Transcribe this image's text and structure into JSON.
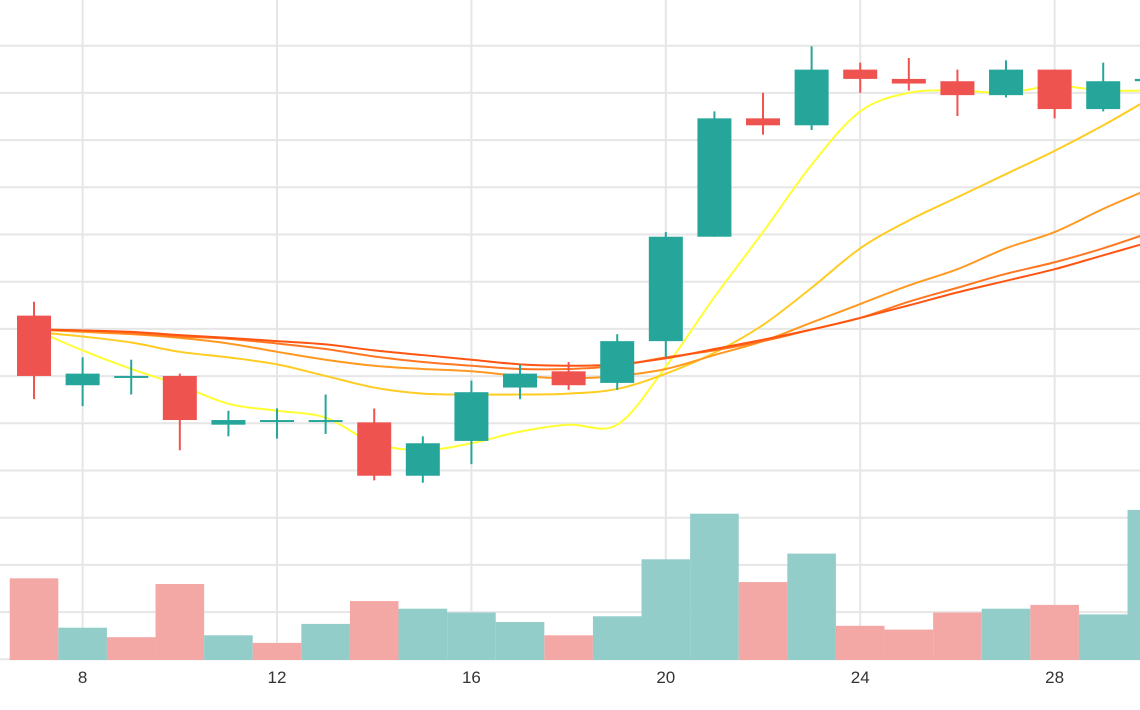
{
  "colors": {
    "up": "#26a69a",
    "down": "#ef5350",
    "up_volume": "#92cdca",
    "down_volume": "#f4a8a6",
    "grid": "#e6e6e6",
    "ma_lines": [
      "#ffff33",
      "#ffcc22",
      "#ff9922",
      "#ff7722",
      "#ff5511"
    ]
  },
  "chart_data": {
    "type": "candlestick",
    "x_ticks": [
      "8",
      "12",
      "16",
      "20",
      "24",
      "28"
    ],
    "x_tick_positions": [
      8,
      12,
      16,
      20,
      24,
      28
    ],
    "xlim": [
      6.3,
      30.6
    ],
    "price_ylim": [
      -1.92,
      12.3
    ],
    "volume_ylim": [
      0,
      100
    ],
    "grid": true,
    "candles": [
      {
        "day": 7,
        "open": 5.5,
        "high": 5.8,
        "low": 3.7,
        "close": 4.2
      },
      {
        "day": 8,
        "open": 4.0,
        "high": 4.6,
        "low": 3.55,
        "close": 4.25
      },
      {
        "day": 9,
        "open": 4.2,
        "high": 4.55,
        "low": 3.8,
        "close": 4.2
      },
      {
        "day": 10,
        "open": 4.2,
        "high": 4.25,
        "low": 2.6,
        "close": 3.25
      },
      {
        "day": 11,
        "open": 3.15,
        "high": 3.45,
        "low": 2.9,
        "close": 3.25
      },
      {
        "day": 12,
        "open": 3.25,
        "high": 3.5,
        "low": 2.85,
        "close": 3.25
      },
      {
        "day": 13,
        "open": 3.25,
        "high": 3.8,
        "low": 2.95,
        "close": 3.25
      },
      {
        "day": 14,
        "open": 3.2,
        "high": 3.5,
        "low": 1.95,
        "close": 2.05
      },
      {
        "day": 15,
        "open": 2.05,
        "high": 2.9,
        "low": 1.9,
        "close": 2.75
      },
      {
        "day": 16,
        "open": 2.8,
        "high": 4.1,
        "low": 2.3,
        "close": 3.85
      },
      {
        "day": 17,
        "open": 3.95,
        "high": 4.45,
        "low": 3.7,
        "close": 4.25
      },
      {
        "day": 18,
        "open": 4.3,
        "high": 4.5,
        "low": 3.9,
        "close": 4.0
      },
      {
        "day": 19,
        "open": 4.05,
        "high": 5.1,
        "low": 3.9,
        "close": 4.95
      },
      {
        "day": 20,
        "open": 4.95,
        "high": 7.3,
        "low": 4.6,
        "close": 7.2
      },
      {
        "day": 21,
        "open": 7.2,
        "high": 9.9,
        "low": 7.2,
        "close": 9.75
      },
      {
        "day": 22,
        "open": 9.75,
        "high": 10.3,
        "low": 9.4,
        "close": 9.6
      },
      {
        "day": 23,
        "open": 9.6,
        "high": 11.3,
        "low": 9.5,
        "close": 10.8
      },
      {
        "day": 24,
        "open": 10.8,
        "high": 10.95,
        "low": 10.3,
        "close": 10.6
      },
      {
        "day": 25,
        "open": 10.6,
        "high": 11.05,
        "low": 10.35,
        "close": 10.5
      },
      {
        "day": 26,
        "open": 10.55,
        "high": 10.8,
        "low": 9.8,
        "close": 10.25
      },
      {
        "day": 27,
        "open": 10.25,
        "high": 11.0,
        "low": 10.2,
        "close": 10.8
      },
      {
        "day": 28,
        "open": 10.8,
        "high": 10.8,
        "low": 9.75,
        "close": 9.95
      },
      {
        "day": 29,
        "open": 9.95,
        "high": 10.95,
        "low": 9.9,
        "close": 10.55
      },
      {
        "day": 30,
        "open": 10.55,
        "high": 11.2,
        "low": 9.2,
        "close": 10.6
      }
    ],
    "volume": [
      {
        "day": 7,
        "value": 43,
        "direction": "down"
      },
      {
        "day": 8,
        "value": 17,
        "direction": "up"
      },
      {
        "day": 9,
        "value": 12,
        "direction": "down"
      },
      {
        "day": 10,
        "value": 40,
        "direction": "down"
      },
      {
        "day": 11,
        "value": 13,
        "direction": "up"
      },
      {
        "day": 12,
        "value": 9,
        "direction": "down"
      },
      {
        "day": 13,
        "value": 19,
        "direction": "up"
      },
      {
        "day": 14,
        "value": 31,
        "direction": "down"
      },
      {
        "day": 15,
        "value": 27,
        "direction": "up"
      },
      {
        "day": 16,
        "value": 25,
        "direction": "up"
      },
      {
        "day": 17,
        "value": 20,
        "direction": "up"
      },
      {
        "day": 18,
        "value": 13,
        "direction": "down"
      },
      {
        "day": 19,
        "value": 23,
        "direction": "up"
      },
      {
        "day": 20,
        "value": 53,
        "direction": "up"
      },
      {
        "day": 21,
        "value": 77,
        "direction": "up"
      },
      {
        "day": 22,
        "value": 41,
        "direction": "down"
      },
      {
        "day": 23,
        "value": 56,
        "direction": "up"
      },
      {
        "day": 24,
        "value": 18,
        "direction": "down"
      },
      {
        "day": 25,
        "value": 16,
        "direction": "down"
      },
      {
        "day": 26,
        "value": 25,
        "direction": "down"
      },
      {
        "day": 27,
        "value": 27,
        "direction": "up"
      },
      {
        "day": 28,
        "value": 29,
        "direction": "down"
      },
      {
        "day": 29,
        "value": 24,
        "direction": "up"
      },
      {
        "day": 30,
        "value": 79,
        "direction": "up"
      }
    ],
    "moving_averages": [
      {
        "period": 5,
        "x": [
          7,
          8,
          9,
          10,
          11,
          12,
          13,
          14,
          15,
          16,
          17,
          18,
          19,
          20,
          21,
          22,
          23,
          24,
          25,
          26,
          27,
          28,
          29,
          30
        ],
        "y": [
          5.2,
          4.75,
          4.35,
          4.0,
          3.6,
          3.45,
          3.3,
          2.75,
          2.6,
          2.75,
          3.0,
          3.15,
          3.15,
          4.4,
          5.9,
          7.3,
          8.75,
          9.9,
          10.3,
          10.35,
          10.3,
          10.45,
          10.35,
          10.35
        ]
      },
      {
        "period": 10,
        "x": [
          7,
          8,
          9,
          10,
          11,
          12,
          13,
          14,
          15,
          16,
          17,
          18,
          19,
          20,
          21,
          22,
          23,
          24,
          25,
          26,
          27,
          28,
          29,
          30
        ],
        "y": [
          5.15,
          5.05,
          4.92,
          4.72,
          4.6,
          4.45,
          4.2,
          3.95,
          3.82,
          3.8,
          3.8,
          3.82,
          3.92,
          4.25,
          4.7,
          5.3,
          6.1,
          6.95,
          7.55,
          8.05,
          8.55,
          9.05,
          9.6,
          10.2
        ]
      },
      {
        "period": 20,
        "x": [
          7,
          8,
          9,
          10,
          11,
          12,
          13,
          14,
          15,
          16,
          17,
          18,
          19,
          20,
          21,
          22,
          23,
          24,
          25,
          26,
          27,
          28,
          29,
          30
        ],
        "y": [
          5.2,
          5.15,
          5.1,
          5.02,
          4.9,
          4.72,
          4.55,
          4.42,
          4.35,
          4.3,
          4.2,
          4.15,
          4.2,
          4.35,
          4.65,
          4.95,
          5.35,
          5.75,
          6.15,
          6.5,
          6.95,
          7.3,
          7.8,
          8.25
        ]
      },
      {
        "period": 30,
        "x": [
          7,
          8,
          9,
          10,
          11,
          12,
          13,
          14,
          15,
          16,
          17,
          18,
          19,
          20,
          21,
          22,
          23,
          24,
          25,
          26,
          27,
          28,
          29,
          30
        ],
        "y": [
          5.2,
          5.18,
          5.12,
          5.05,
          5.0,
          4.9,
          4.78,
          4.62,
          4.5,
          4.42,
          4.35,
          4.35,
          4.42,
          4.6,
          4.75,
          4.95,
          5.2,
          5.45,
          5.8,
          6.1,
          6.4,
          6.65,
          6.95,
          7.3
        ]
      },
      {
        "period": 60,
        "x": [
          7,
          8,
          9,
          10,
          11,
          12,
          13,
          14,
          15,
          16,
          17,
          18,
          19,
          20,
          21,
          22,
          23,
          24,
          25,
          26,
          27,
          28,
          29,
          30
        ],
        "y": [
          5.2,
          5.18,
          5.15,
          5.08,
          5.02,
          4.95,
          4.88,
          4.75,
          4.65,
          4.55,
          4.45,
          4.42,
          4.45,
          4.58,
          4.78,
          4.98,
          5.2,
          5.45,
          5.72,
          6.0,
          6.25,
          6.5,
          6.8,
          7.1
        ]
      }
    ]
  }
}
